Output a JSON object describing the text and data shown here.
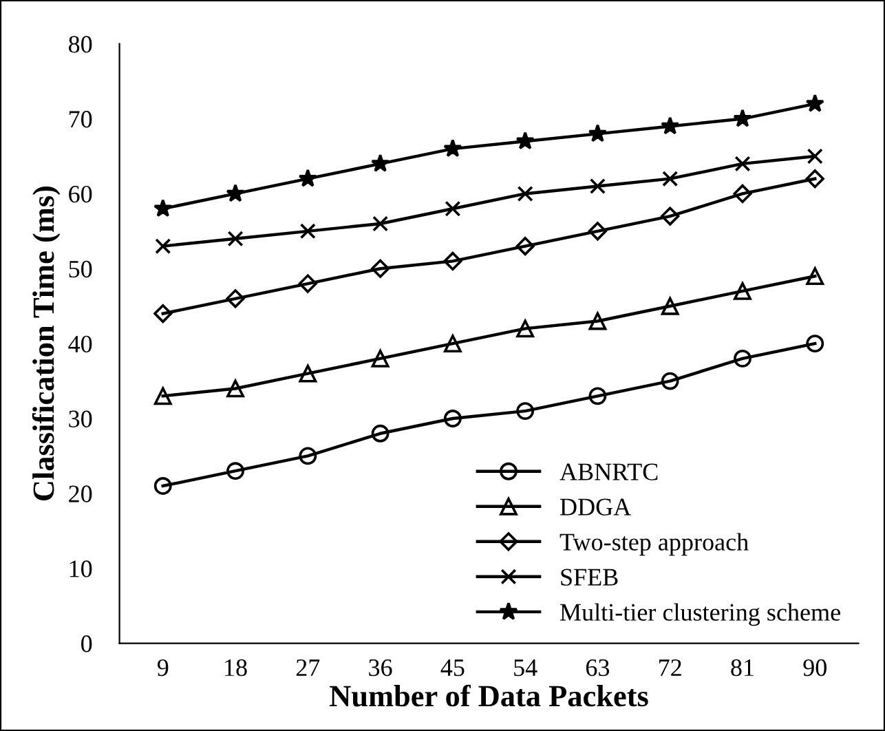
{
  "chart_data": {
    "type": "line",
    "xlabel": "Number of Data Packets",
    "ylabel": "Classification Time (ms)",
    "categories": [
      "9",
      "18",
      "27",
      "36",
      "45",
      "54",
      "63",
      "72",
      "81",
      "90"
    ],
    "series": [
      {
        "name": "ABNRTC",
        "color": "#000000",
        "marker": "circle",
        "values": [
          21,
          23,
          25,
          28,
          30,
          31,
          33,
          35,
          38,
          40
        ]
      },
      {
        "name": "DDGA",
        "color": "#000000",
        "marker": "triangle",
        "values": [
          33,
          34,
          36,
          38,
          40,
          42,
          43,
          45,
          47,
          49
        ]
      },
      {
        "name": "Two-step approach",
        "color": "#000000",
        "marker": "diamond",
        "values": [
          44,
          46,
          48,
          50,
          51,
          53,
          55,
          57,
          60,
          62
        ]
      },
      {
        "name": "SFEB",
        "color": "#000000",
        "marker": "cross",
        "values": [
          53,
          54,
          55,
          56,
          58,
          60,
          61,
          62,
          64,
          65
        ]
      },
      {
        "name": "Multi-tier clustering scheme",
        "color": "#000000",
        "marker": "star",
        "values": [
          58,
          60,
          62,
          64,
          66,
          67,
          68,
          69,
          70,
          72
        ]
      }
    ],
    "ylim": [
      0,
      80
    ],
    "yticks": [
      0,
      10,
      20,
      30,
      40,
      50,
      60,
      70,
      80
    ],
    "grid": false,
    "legend": "bottom right",
    "line_style": "solid"
  }
}
